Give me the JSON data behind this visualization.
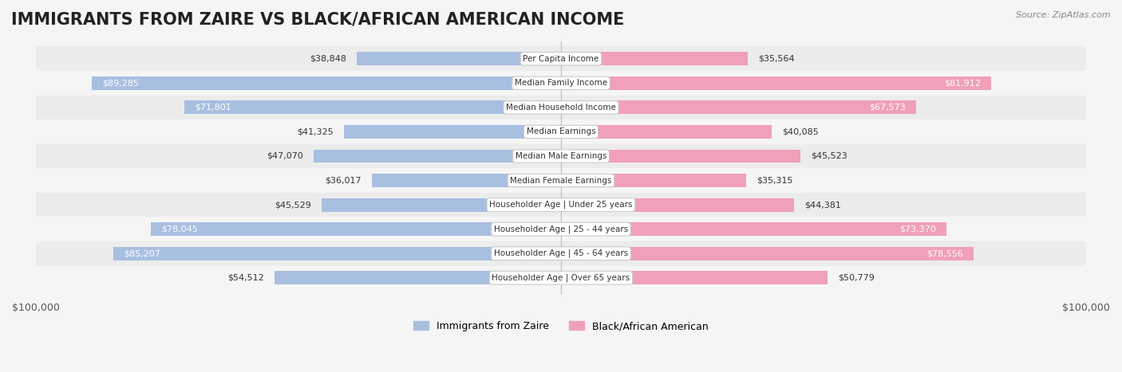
{
  "title": "IMMIGRANTS FROM ZAIRE VS BLACK/AFRICAN AMERICAN INCOME",
  "source": "Source: ZipAtlas.com",
  "categories": [
    "Per Capita Income",
    "Median Family Income",
    "Median Household Income",
    "Median Earnings",
    "Median Male Earnings",
    "Median Female Earnings",
    "Householder Age | Under 25 years",
    "Householder Age | 25 - 44 years",
    "Householder Age | 45 - 64 years",
    "Householder Age | Over 65 years"
  ],
  "zaire_values": [
    38848,
    89285,
    71801,
    41325,
    47070,
    36017,
    45529,
    78045,
    85207,
    54512
  ],
  "black_values": [
    35564,
    81912,
    67573,
    40085,
    45523,
    35315,
    44381,
    73370,
    78556,
    50779
  ],
  "zaire_color": "#a8bfe0",
  "black_color": "#f0a0b8",
  "zaire_color_dark": "#7090c8",
  "black_color_dark": "#e06080",
  "max_value": 100000,
  "background_color": "#f5f5f5",
  "row_bg_light": "#f0f0f0",
  "row_bg_dark": "#e8e8e8",
  "label_box_color": "#ffffff",
  "title_fontsize": 15,
  "legend_zaire_label": "Immigrants from Zaire",
  "legend_black_label": "Black/African American"
}
